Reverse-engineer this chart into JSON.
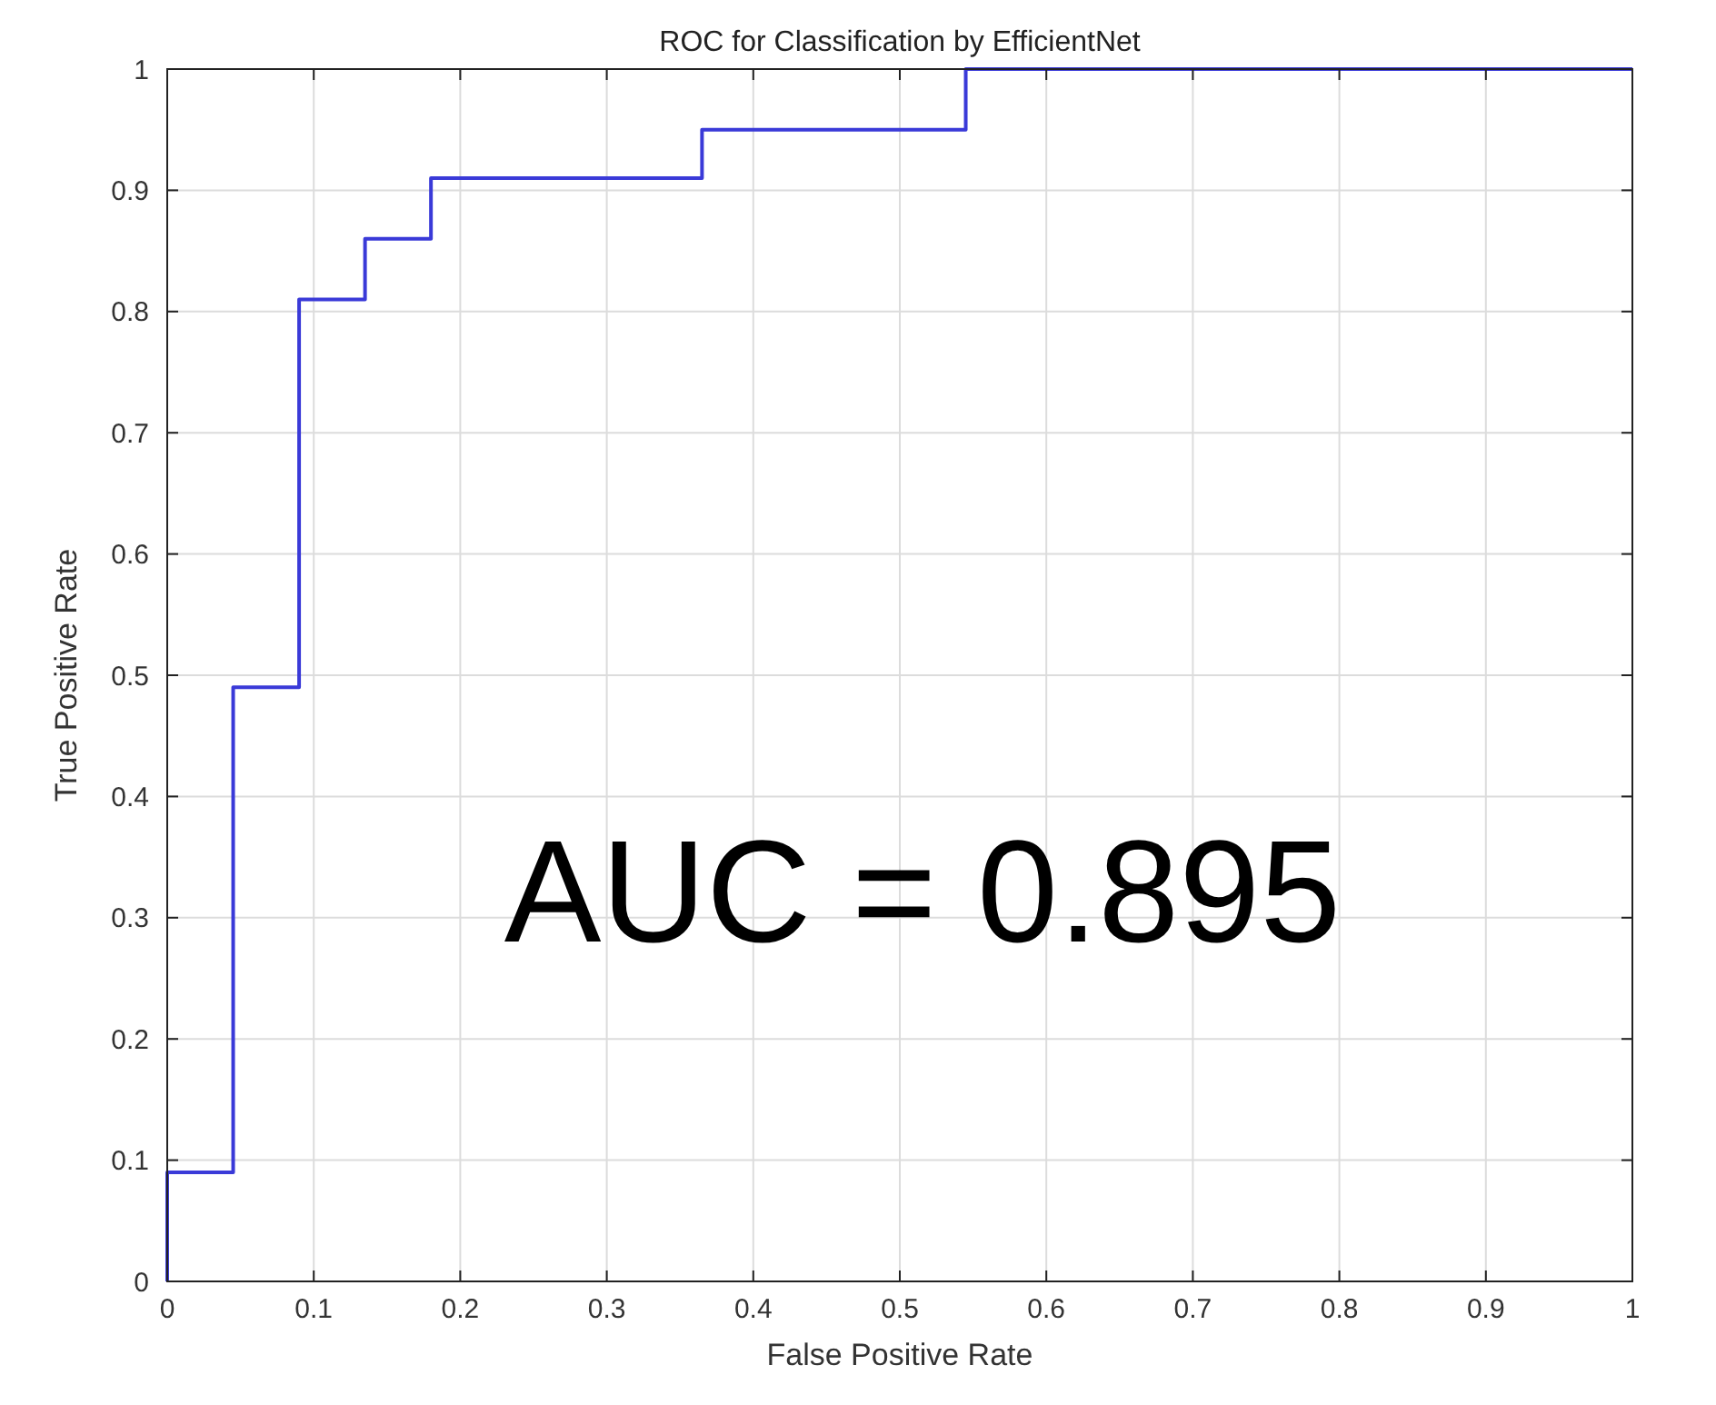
{
  "chart_data": {
    "type": "step",
    "title": "ROC for Classification by EfficientNet",
    "xlabel": "False Positive Rate",
    "ylabel": "True Positive Rate",
    "x": [
      0,
      0,
      0.045,
      0.09,
      0.135,
      0.18,
      0.365,
      0.545,
      1
    ],
    "series": [
      {
        "color": "#3a3ad8",
        "values": [
          0,
          0.09,
          0.49,
          0.81,
          0.86,
          0.91,
          0.95,
          1,
          1
        ]
      }
    ],
    "xlim": [
      0,
      1
    ],
    "ylim": [
      0,
      1
    ],
    "xticks": [
      0,
      0.1,
      0.2,
      0.3,
      0.4,
      0.5,
      0.6,
      0.7,
      0.8,
      0.9,
      1
    ],
    "yticks": [
      0,
      0.1,
      0.2,
      0.3,
      0.4,
      0.5,
      0.6,
      0.7,
      0.8,
      0.9,
      1
    ],
    "grid": true,
    "annotations": [
      "AUC = 0.895"
    ]
  }
}
